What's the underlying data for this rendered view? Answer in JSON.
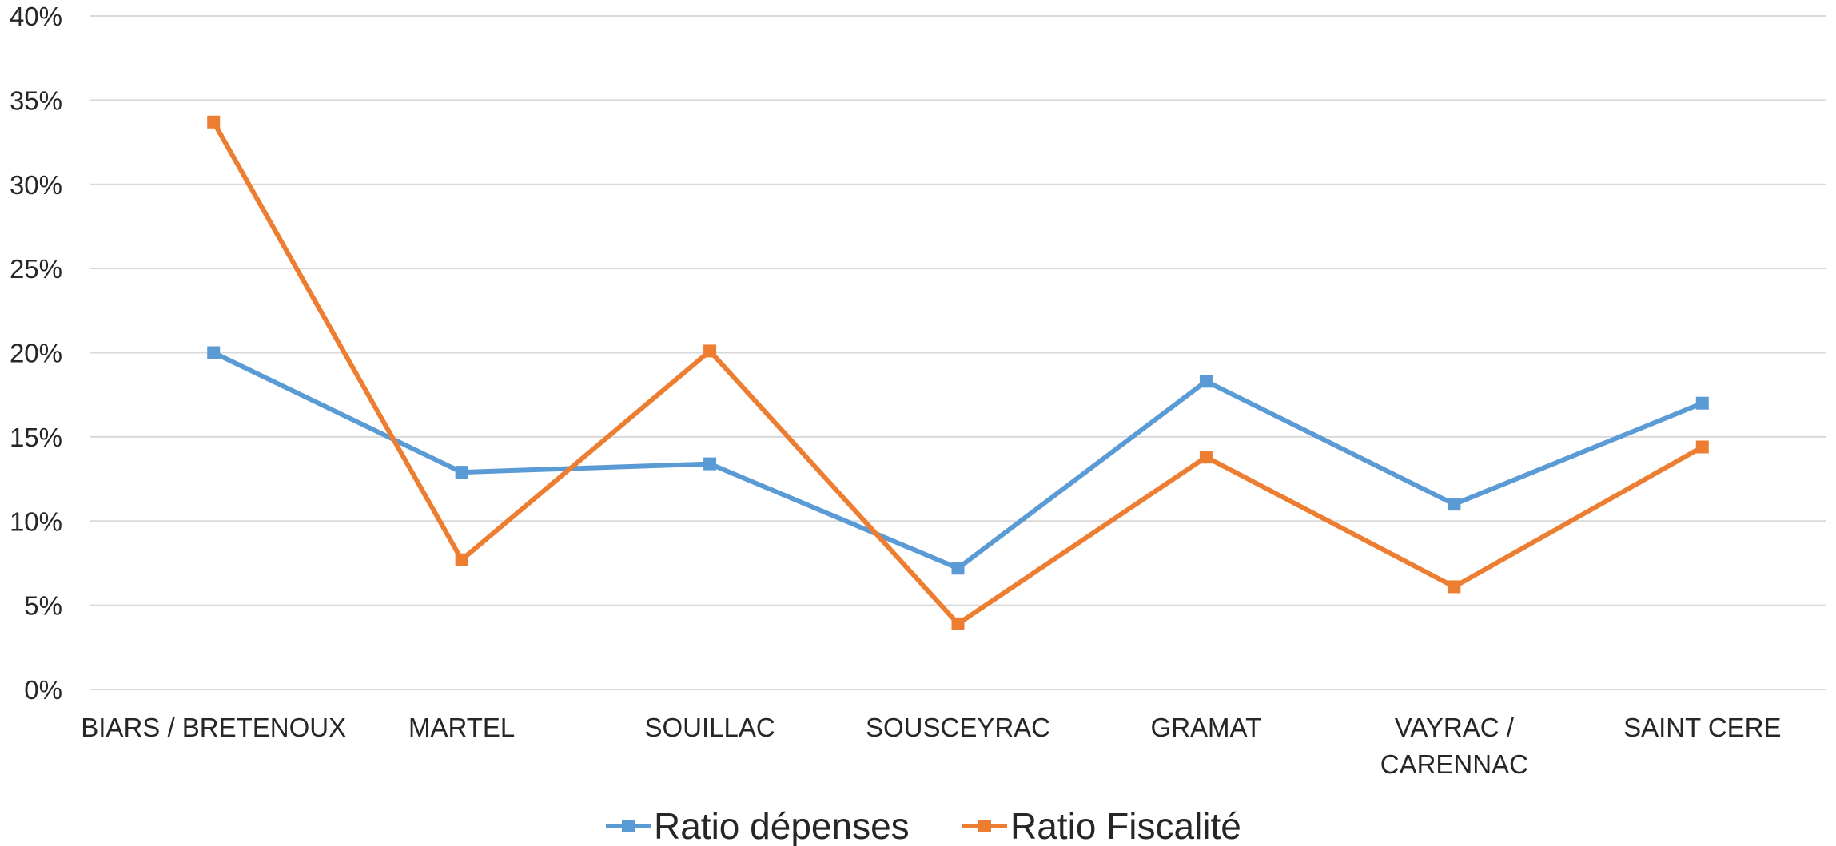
{
  "chart_data": {
    "type": "line",
    "title": "",
    "xlabel": "",
    "ylabel": "",
    "categories": [
      [
        "BIARS / BRETENOUX"
      ],
      [
        "MARTEL"
      ],
      [
        "SOUILLAC"
      ],
      [
        "SOUSCEYRAC"
      ],
      [
        "GRAMAT"
      ],
      [
        "VAYRAC /",
        "CARENNAC"
      ],
      [
        "SAINT CERE"
      ]
    ],
    "ylim": [
      0,
      40
    ],
    "yticks": [
      "0%",
      "5%",
      "10%",
      "15%",
      "20%",
      "25%",
      "30%",
      "35%",
      "40%"
    ],
    "ytick_values": [
      0,
      5,
      10,
      15,
      20,
      25,
      30,
      35,
      40
    ],
    "grid": true,
    "legend_position": "bottom",
    "series": [
      {
        "name": "Ratio dépenses",
        "color": "#5B9BD5",
        "values": [
          20.0,
          12.9,
          13.4,
          7.2,
          18.3,
          11.0,
          17.0
        ]
      },
      {
        "name": "Ratio Fiscalité",
        "color": "#ED7D31",
        "values": [
          33.7,
          7.7,
          20.1,
          3.9,
          13.8,
          6.1,
          14.4
        ]
      }
    ]
  }
}
